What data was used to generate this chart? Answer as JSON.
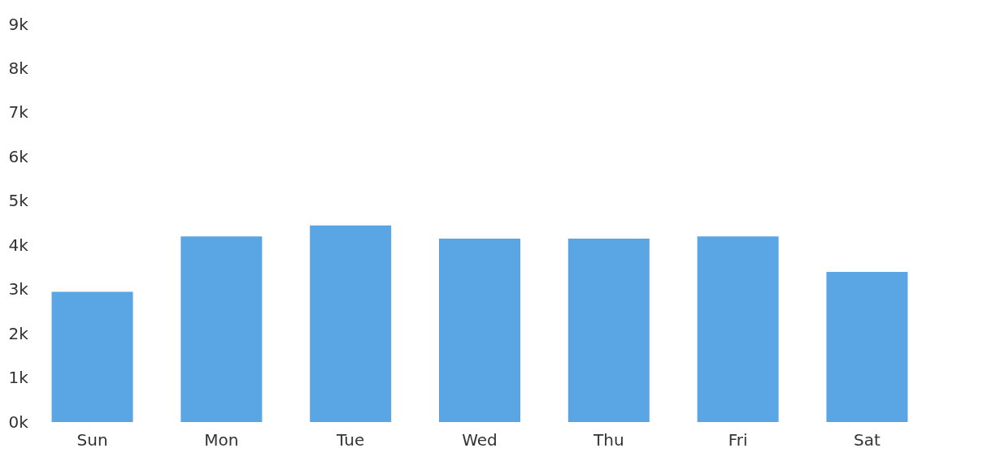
{
  "chart_data": {
    "type": "bar",
    "categories": [
      "Sun",
      "Mon",
      "Tue",
      "Wed",
      "Thu",
      "Fri",
      "Sat"
    ],
    "values": [
      2950,
      4200,
      4450,
      4150,
      4150,
      4200,
      3400
    ],
    "color": "#5aa5e3",
    "ylim": [
      0,
      9000
    ],
    "yticks": [
      {
        "value": 0,
        "label": "0k"
      },
      {
        "value": 1000,
        "label": "1k"
      },
      {
        "value": 2000,
        "label": "2k"
      },
      {
        "value": 3000,
        "label": "3k"
      },
      {
        "value": 4000,
        "label": "4k"
      },
      {
        "value": 5000,
        "label": "5k"
      },
      {
        "value": 6000,
        "label": "6k"
      },
      {
        "value": 7000,
        "label": "7k"
      },
      {
        "value": 8000,
        "label": "8k"
      },
      {
        "value": 9000,
        "label": "9k"
      }
    ],
    "grid": false
  }
}
